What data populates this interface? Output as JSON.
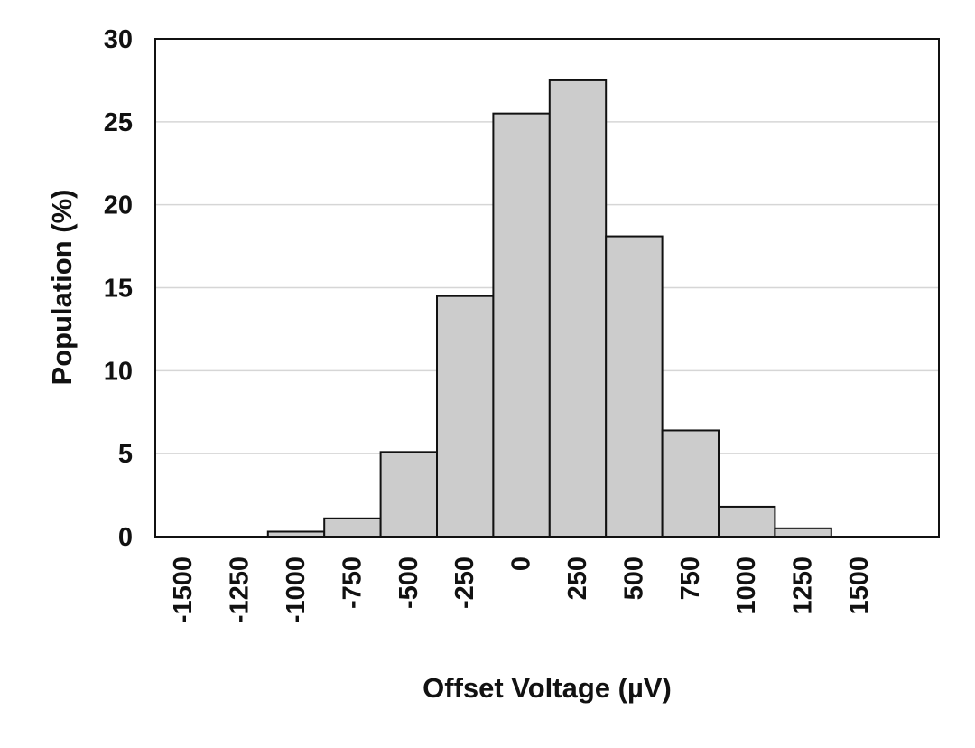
{
  "chart_data": {
    "type": "bar",
    "xlabel": "Offset Voltage (µV)",
    "ylabel": "Population (%)",
    "ylim": [
      0,
      30
    ],
    "yticks": [
      0,
      5,
      10,
      15,
      20,
      25,
      30
    ],
    "categories": [
      "-1500",
      "-1250",
      "-1000",
      "-750",
      "-500",
      "-250",
      "0",
      "250",
      "500",
      "750",
      "1000",
      "1250",
      "1500",
      ""
    ],
    "values": [
      0,
      0,
      0.3,
      1.1,
      5.1,
      14.5,
      25.5,
      27.5,
      18.1,
      6.4,
      1.8,
      0.5,
      0,
      0
    ],
    "grid": true,
    "legend": "none",
    "colors": {
      "bar_fill": "#cccccc",
      "bar_stroke": "#111111",
      "grid": "#d6d6d6",
      "text": "#111111"
    }
  }
}
